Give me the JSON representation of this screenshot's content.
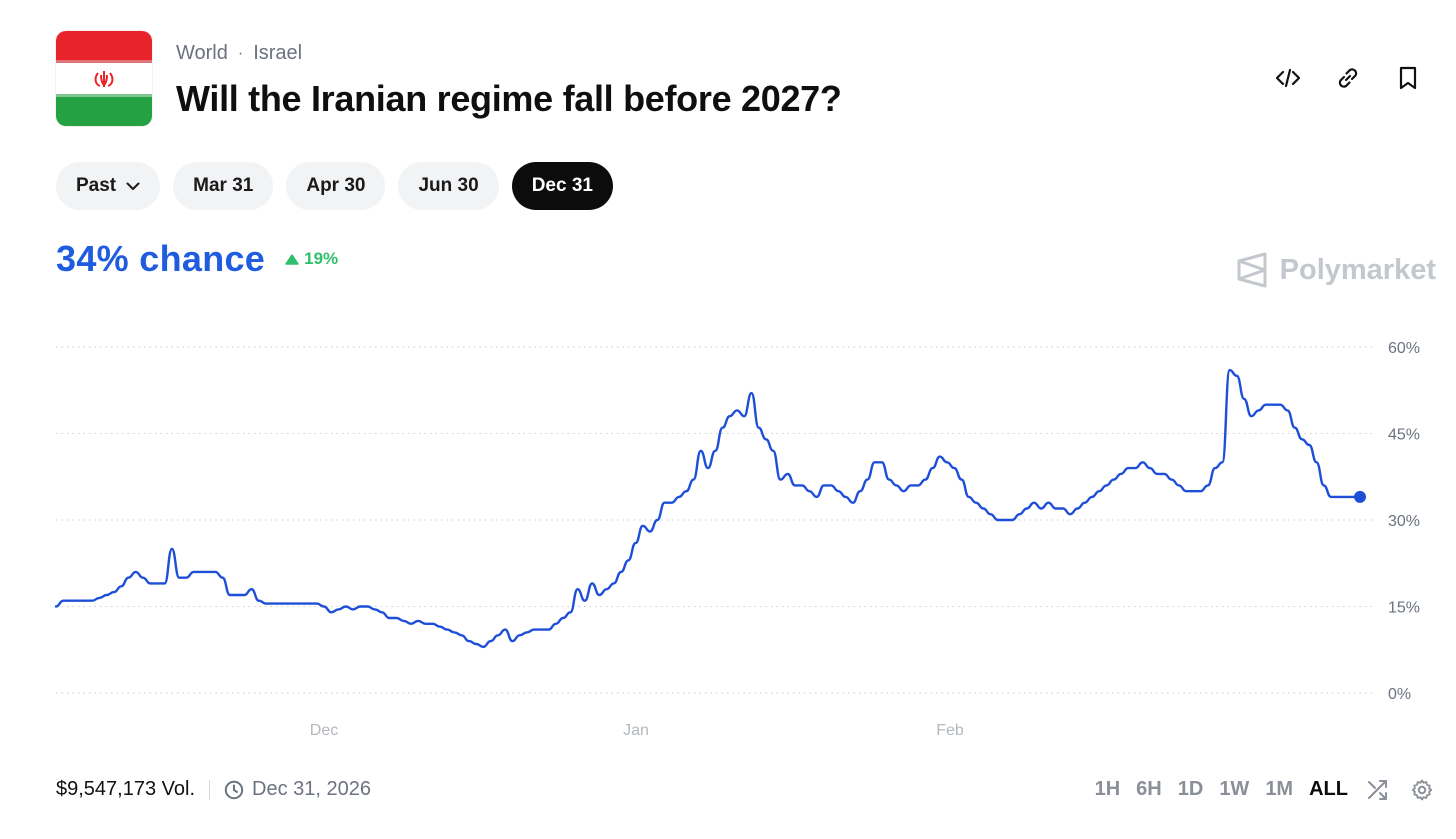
{
  "header": {
    "breadcrumbs": [
      "World",
      "Israel"
    ],
    "title": "Will the Iranian regime fall before 2027?"
  },
  "tabs": [
    {
      "label": "Past",
      "active": false,
      "dropdown": true
    },
    {
      "label": "Mar 31",
      "active": false
    },
    {
      "label": "Apr 30",
      "active": false
    },
    {
      "label": "Jun 30",
      "active": false
    },
    {
      "label": "Dec 31",
      "active": true
    }
  ],
  "odds": {
    "chance_text": "34% chance",
    "delta_text": "19%",
    "delta_direction": "up"
  },
  "brand": {
    "name": "Polymarket"
  },
  "colors": {
    "accent": "#1f5ce0",
    "positive": "#2fbf6b",
    "line": "#1d4ed8"
  },
  "icons": {
    "embed": "code-icon",
    "link": "link-icon",
    "bookmark": "bookmark-icon"
  },
  "chart_data": {
    "type": "line",
    "y_unit": "%",
    "ylim": [
      0,
      60
    ],
    "yticks": [
      0,
      15,
      30,
      45,
      60
    ],
    "ytick_labels": [
      "0%",
      "15%",
      "30%",
      "45%",
      "60%"
    ],
    "xtick_labels": [
      "Dec",
      "Jan",
      "Feb"
    ],
    "grid": "horizontal dotted",
    "series": [
      {
        "values": [
          15,
          16,
          16,
          16,
          16,
          16,
          16.5,
          17,
          17.5,
          18.5,
          20,
          21,
          20,
          19,
          19,
          19,
          25,
          20,
          20,
          21,
          21,
          21,
          21,
          20,
          17,
          17,
          17,
          18,
          16,
          15.5,
          15.5,
          15.5,
          15.5,
          15.5,
          15.5,
          15.5,
          15.5,
          15,
          14,
          14.5,
          15,
          14.5,
          15,
          15,
          14.5,
          14,
          13,
          13,
          12.5,
          12,
          12.5,
          12,
          12,
          11.5,
          11,
          10.5,
          10,
          9,
          8.5,
          8,
          9,
          10,
          11,
          9,
          10,
          10.5,
          11,
          11,
          11,
          12,
          13,
          14,
          18,
          16,
          19,
          17,
          18,
          19,
          21,
          23,
          26,
          29,
          28,
          30,
          33,
          33,
          34,
          35,
          37,
          42,
          39,
          42,
          46,
          48,
          49,
          48,
          52,
          46,
          44,
          42,
          37,
          38,
          36,
          36,
          35,
          34,
          36,
          36,
          35,
          34,
          33,
          35,
          37,
          40,
          40,
          37,
          36,
          35,
          36,
          36,
          37,
          39,
          41,
          40,
          39,
          37,
          34,
          33,
          32,
          31,
          30,
          30,
          30,
          31,
          32,
          33,
          32,
          33,
          32,
          32,
          31,
          32,
          33,
          34,
          35,
          36,
          37,
          38,
          39,
          39,
          40,
          39,
          38,
          38,
          37,
          36,
          35,
          35,
          35,
          36,
          39,
          40,
          56,
          55,
          51,
          48,
          49,
          50,
          50,
          50,
          49,
          46,
          44,
          43,
          40,
          36,
          34,
          34,
          34,
          34,
          34
        ]
      }
    ]
  },
  "footer": {
    "volume_text": "$9,547,173 Vol.",
    "end_date_text": "Dec 31, 2026",
    "ranges": [
      "1H",
      "6H",
      "1D",
      "1W",
      "1M",
      "ALL"
    ],
    "active_range": "ALL"
  }
}
